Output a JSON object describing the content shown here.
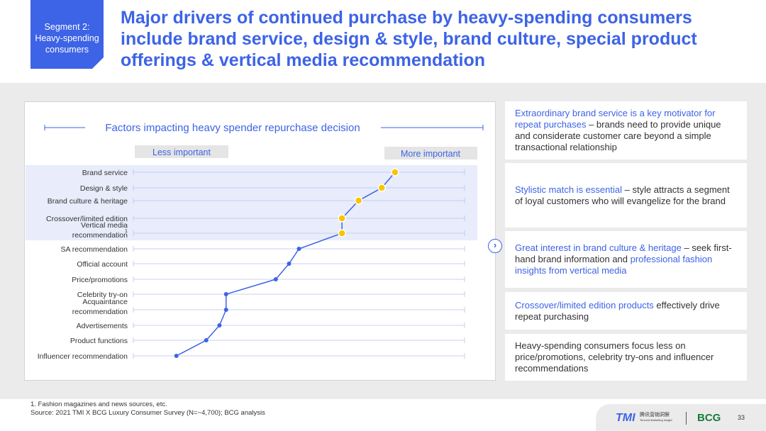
{
  "header": {
    "segment_line1": "Segment 2:",
    "segment_line2": "Heavy-spending",
    "segment_line3": "consumers",
    "title": "Major drivers of continued purchase by heavy-spending consumers include brand service, design & style, brand culture,  special product offerings & vertical media recommendation"
  },
  "chart_data": {
    "type": "line",
    "title": "Factors impacting heavy spender repurchase decision",
    "scale_left_label": "Less important",
    "scale_right_label": "More important",
    "categories": [
      "Brand service",
      "Design & style",
      "Brand culture & heritage",
      "Crossover/limited edition",
      "Vertical media recommendation",
      "SA recommendation",
      "Official account",
      "Price/promotions",
      "Celebrity try-on",
      "Acquaintance recommendation",
      "Advertisements",
      "Product functions",
      "Influencer recommendation"
    ],
    "category_labels": [
      [
        "Brand service"
      ],
      [
        "Design & style"
      ],
      [
        "Brand culture & heritage"
      ],
      [
        "Crossover/limited edition"
      ],
      [
        "Vertical media",
        "recommendation"
      ],
      [
        "SA recommendation"
      ],
      [
        "Official account"
      ],
      [
        "Price/promotions"
      ],
      [
        "Celebrity try-on"
      ],
      [
        "Acquaintance",
        "recommendation"
      ],
      [
        "Advertisements"
      ],
      [
        "Product functions"
      ],
      [
        "Influencer recommendation"
      ]
    ],
    "footnote_marker_index": 4,
    "footnote_marker": "1",
    "values": [
      79,
      75,
      68,
      63,
      63,
      50,
      47,
      43,
      28,
      28,
      26,
      22,
      13
    ],
    "highlighted": [
      true,
      true,
      true,
      true,
      true,
      false,
      false,
      false,
      false,
      false,
      false,
      false,
      false
    ],
    "xlim": [
      0,
      100
    ],
    "colors": {
      "line": "#3d63e6",
      "highlight_point": "#f7c600",
      "highlight_band": "#e8ecfb",
      "grid": "#b8c4ee"
    }
  },
  "insights": [
    {
      "segments": [
        {
          "text": "Extraordinary brand service is a key motivator for repeat purchases",
          "hl": true
        },
        {
          "text": " – brands need to provide unique and considerate customer care beyond a simple transactional relationship",
          "hl": false
        }
      ]
    },
    {
      "segments": [
        {
          "text": "Stylistic match is essential",
          "hl": true
        },
        {
          "text": " – style attracts a segment of loyal customers who will evangelize for the brand",
          "hl": false
        }
      ]
    },
    {
      "segments": [
        {
          "text": "Great interest in brand culture & heritage",
          "hl": true
        },
        {
          "text": " – seek first-hand brand information and ",
          "hl": false
        },
        {
          "text": "professional fashion insights from vertical media",
          "hl": true
        }
      ]
    },
    {
      "segments": [
        {
          "text": "Crossover/limited edition products",
          "hl": true
        },
        {
          "text": " effectively drive repeat purchasing",
          "hl": false
        }
      ]
    },
    {
      "segments": [
        {
          "text": "Heavy-spending consumers focus less on price/promotions, celebrity try-ons and influencer recommendations",
          "hl": false
        }
      ]
    }
  ],
  "arrow_icon": "chevron-right-icon",
  "footnote": {
    "line1": "1.     Fashion magazines and news sources, etc.",
    "line2": "Source: 2021 TMI X BCG Luxury Consumer Survey (N=~4,700); BCG analysis"
  },
  "footer": {
    "tmi_logo": "TMI",
    "tmi_cn_line1": "腾讯营销洞察",
    "tmi_cn_line2": "Tencent Marketing Insight",
    "bcg_logo": "BCG",
    "page_number": "33"
  }
}
